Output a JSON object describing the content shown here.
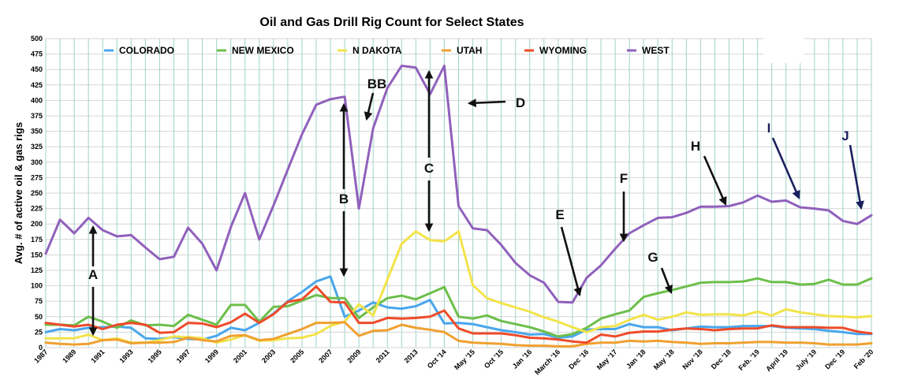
{
  "chart_data": {
    "type": "line",
    "title": "Oil and Gas Drill Rig Count for Select States",
    "ylabel": "Avg. # of active oil & gas rigs",
    "xlabel": "",
    "ylim": [
      0,
      500
    ],
    "yticks": [
      0,
      25,
      50,
      75,
      100,
      125,
      150,
      175,
      200,
      225,
      250,
      275,
      300,
      325,
      350,
      375,
      400,
      425,
      450,
      475,
      500
    ],
    "grid": true,
    "legend_position": "top",
    "x_tick_labels": [
      "1987",
      "1989",
      "1991",
      "1993",
      "1995",
      "1997",
      "1999",
      "2001",
      "2003",
      "2005",
      "2007",
      "2009",
      "2011",
      "2013",
      "Oct '14",
      "May '15",
      "Oct '15",
      "Jan '16",
      "March '16",
      "Dec '16",
      "May '17",
      "Jan '18",
      "May '18",
      "Nov '18",
      "Dec '18",
      "Feb. '19",
      "April '19",
      "July '19",
      "Dec '19",
      "Feb '20"
    ],
    "x_tick_index": [
      0,
      2,
      4,
      6,
      8,
      10,
      12,
      14,
      16,
      18,
      20,
      22,
      24,
      26,
      28,
      30,
      32,
      34,
      36,
      38,
      40,
      42,
      44,
      46,
      48,
      50,
      52,
      54,
      56,
      58
    ],
    "series": [
      {
        "name": "COLORADO",
        "color": "#4aa6ec",
        "values": [
          25,
          30,
          28,
          32,
          33,
          34,
          32,
          15,
          14,
          17,
          14,
          13,
          19,
          32,
          28,
          40,
          55,
          75,
          90,
          107,
          115,
          50,
          60,
          73,
          65,
          63,
          67,
          77,
          39,
          40,
          38,
          33,
          28,
          25,
          21,
          22,
          16,
          18,
          29,
          30,
          30,
          38,
          33,
          33,
          28,
          31,
          34,
          33,
          33,
          35,
          35,
          35,
          32,
          31,
          30,
          27,
          25,
          22,
          22
        ]
      },
      {
        "name": "NEW MEXICO",
        "color": "#6cbf4a",
        "values": [
          37,
          37,
          36,
          50,
          42,
          32,
          44,
          36,
          37,
          35,
          53,
          45,
          37,
          69,
          69,
          42,
          66,
          67,
          76,
          85,
          80,
          80,
          48,
          65,
          80,
          84,
          78,
          88,
          98,
          50,
          47,
          52,
          43,
          38,
          33,
          26,
          18,
          22,
          32,
          47,
          54,
          60,
          82,
          88,
          93,
          99,
          105,
          106,
          106,
          107,
          112,
          106,
          106,
          102,
          103,
          110,
          102,
          102,
          112
        ]
      },
      {
        "name": "N DAKOTA",
        "color": "#f2e34a",
        "values": [
          15,
          15,
          15,
          21,
          12,
          15,
          8,
          8,
          12,
          18,
          17,
          15,
          8,
          13,
          20,
          11,
          12,
          15,
          16,
          22,
          35,
          42,
          70,
          52,
          110,
          168,
          188,
          174,
          172,
          188,
          101,
          80,
          72,
          65,
          58,
          49,
          42,
          33,
          25,
          33,
          35,
          45,
          53,
          45,
          50,
          57,
          53,
          54,
          54,
          52,
          58,
          52,
          62,
          57,
          54,
          51,
          50,
          49,
          51
        ]
      },
      {
        "name": "UTAH",
        "color": "#f0a030",
        "values": [
          8,
          6,
          5,
          6,
          12,
          13,
          7,
          8,
          8,
          9,
          16,
          12,
          10,
          19,
          20,
          12,
          14,
          22,
          30,
          40,
          40,
          41,
          19,
          27,
          28,
          37,
          32,
          29,
          25,
          11,
          8,
          7,
          6,
          4,
          3,
          3,
          2,
          2,
          6,
          8,
          8,
          11,
          10,
          11,
          9,
          8,
          6,
          7,
          7,
          8,
          9,
          9,
          8,
          8,
          7,
          5,
          5,
          5,
          7
        ]
      },
      {
        "name": "WYOMING",
        "color": "#ee4b2a",
        "values": [
          40,
          37,
          34,
          37,
          30,
          37,
          40,
          37,
          24,
          25,
          40,
          39,
          33,
          41,
          55,
          40,
          54,
          74,
          78,
          99,
          74,
          73,
          40,
          40,
          48,
          47,
          48,
          50,
          60,
          31,
          23,
          23,
          23,
          20,
          16,
          15,
          13,
          10,
          8,
          21,
          18,
          24,
          26,
          26,
          29,
          31,
          30,
          28,
          30,
          31,
          31,
          36,
          33,
          33,
          33,
          32,
          32,
          26,
          23
        ]
      },
      {
        "name": "WEST",
        "color": "#9060bc",
        "values": [
          152,
          207,
          185,
          210,
          190,
          180,
          182,
          162,
          143,
          147,
          194,
          168,
          125,
          195,
          250,
          175,
          230,
          288,
          345,
          393,
          402,
          406,
          225,
          355,
          420,
          456,
          453,
          410,
          456,
          229,
          193,
          190,
          166,
          137,
          117,
          105,
          74,
          73,
          113,
          133,
          160,
          185,
          198,
          210,
          211,
          218,
          228,
          228,
          229,
          235,
          246,
          236,
          238,
          227,
          225,
          222,
          205,
          200,
          214
        ]
      }
    ]
  },
  "legend": [
    {
      "label": "COLORADO",
      "color": "#4aa6ec"
    },
    {
      "label": "NEW MEXICO",
      "color": "#6cbf4a"
    },
    {
      "label": "N DAKOTA",
      "color": "#f2e34a"
    },
    {
      "label": "UTAH",
      "color": "#f0a030"
    },
    {
      "label": "WYOMING",
      "color": "#ee4b2a"
    },
    {
      "label": "WEST",
      "color": "#9060bc"
    }
  ],
  "annotations": [
    {
      "label": "A",
      "color": "#111111"
    },
    {
      "label": "B",
      "color": "#111111"
    },
    {
      "label": "BB",
      "color": "#111111"
    },
    {
      "label": "C",
      "color": "#111111"
    },
    {
      "label": "D",
      "color": "#111111"
    },
    {
      "label": "E",
      "color": "#111111"
    },
    {
      "label": "F",
      "color": "#111111"
    },
    {
      "label": "G",
      "color": "#111111"
    },
    {
      "label": "H",
      "color": "#111111"
    },
    {
      "label": "I",
      "color": "#1a1f5e"
    },
    {
      "label": "J",
      "color": "#1a1f5e"
    }
  ]
}
